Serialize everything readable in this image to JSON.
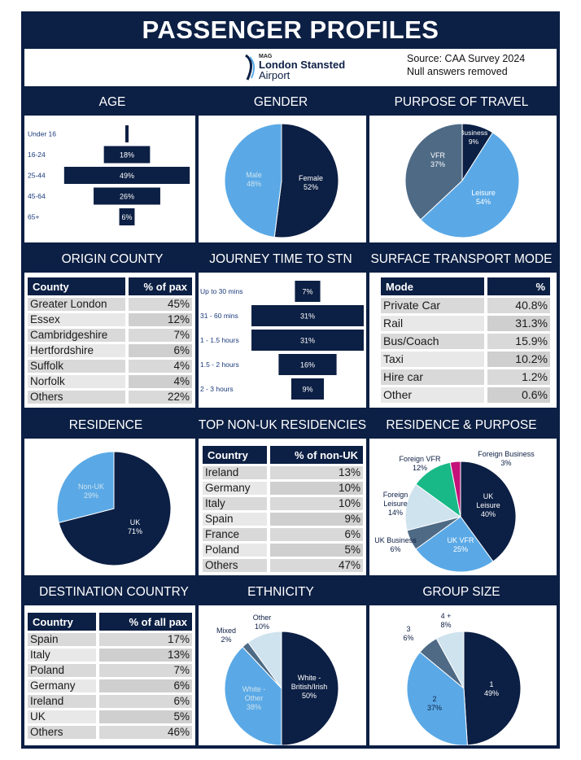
{
  "title": "PASSENGER PROFILES",
  "logo": {
    "mag": "MAG",
    "name_line1": "London Stansted",
    "name_line2": "Airport"
  },
  "source": {
    "line1": "Source: CAA Survey 2024",
    "line2": "Null answers removed"
  },
  "colors": {
    "navy": "#0c1f44",
    "light_blue": "#5aa9e6",
    "slate": "#4e6a85",
    "pale_blue": "#cfe3ee",
    "green": "#19b987",
    "magenta": "#c4127a"
  },
  "sections": {
    "age": "AGE",
    "gender": "GENDER",
    "purpose": "PURPOSE OF TRAVEL",
    "origin": "ORIGIN COUNTY",
    "journey": "JOURNEY TIME TO STN",
    "transport": "SURFACE TRANSPORT MODE",
    "residence": "RESIDENCE",
    "nonuk": "TOP NON-UK RESIDENCIES",
    "res_purpose": "RESIDENCE & PURPOSE",
    "destination": "DESTINATION COUNTRY",
    "ethnicity": "ETHNICITY",
    "group": "GROUP SIZE"
  },
  "tables": {
    "origin": {
      "headers": [
        "County",
        "% of pax"
      ],
      "rows": [
        [
          "Greater London",
          "45%"
        ],
        [
          "Essex",
          "12%"
        ],
        [
          "Cambridgeshire",
          "7%"
        ],
        [
          "Hertfordshire",
          "6%"
        ],
        [
          "Suffolk",
          "4%"
        ],
        [
          "Norfolk",
          "4%"
        ],
        [
          "Others",
          "22%"
        ]
      ]
    },
    "transport": {
      "headers": [
        "Mode",
        "%"
      ],
      "rows": [
        [
          "Private Car",
          "40.8%"
        ],
        [
          "Rail",
          "31.3%"
        ],
        [
          "Bus/Coach",
          "15.9%"
        ],
        [
          "Taxi",
          "10.2%"
        ],
        [
          "Hire car",
          "1.2%"
        ],
        [
          "Other",
          "0.6%"
        ]
      ]
    },
    "nonuk": {
      "headers": [
        "Country",
        "% of non-UK"
      ],
      "rows": [
        [
          "Ireland",
          "13%"
        ],
        [
          "Germany",
          "10%"
        ],
        [
          "Italy",
          "10%"
        ],
        [
          "Spain",
          "9%"
        ],
        [
          "France",
          "6%"
        ],
        [
          "Poland",
          "5%"
        ],
        [
          "Others",
          "47%"
        ]
      ]
    },
    "destination": {
      "headers": [
        "Country",
        "% of all pax"
      ],
      "rows": [
        [
          "Spain",
          "17%"
        ],
        [
          "Italy",
          "13%"
        ],
        [
          "Poland",
          "7%"
        ],
        [
          "Germany",
          "6%"
        ],
        [
          "Ireland",
          "6%"
        ],
        [
          "UK",
          "5%"
        ],
        [
          "Others",
          "46%"
        ]
      ]
    }
  },
  "chart_data": [
    {
      "id": "age",
      "type": "bar",
      "orientation": "horizontal-centered",
      "categories": [
        "Under 16",
        "16-24",
        "25-44",
        "45-64",
        "65+"
      ],
      "values": [
        1,
        18,
        49,
        26,
        6
      ],
      "labels": [
        "",
        "18%",
        "49%",
        "26%",
        "6%"
      ]
    },
    {
      "id": "gender",
      "type": "pie",
      "slices": [
        {
          "label": "Female",
          "value": 52,
          "text": "52%",
          "color": "#0c1f44"
        },
        {
          "label": "Male",
          "value": 48,
          "text": "48%",
          "color": "#5aa9e6"
        }
      ]
    },
    {
      "id": "purpose",
      "type": "pie",
      "slices": [
        {
          "label": "Business",
          "value": 9,
          "text": "9%",
          "color": "#0c1f44"
        },
        {
          "label": "Leisure",
          "value": 54,
          "text": "54%",
          "color": "#5aa9e6"
        },
        {
          "label": "VFR",
          "value": 37,
          "text": "37%",
          "color": "#4e6a85"
        }
      ]
    },
    {
      "id": "journey",
      "type": "bar",
      "orientation": "horizontal-centered",
      "categories": [
        "Up to 30 mins",
        "31 - 60 mins",
        "1 - 1.5 hours",
        "1.5 - 2 hours",
        "2 - 3 hours"
      ],
      "values": [
        7,
        31,
        31,
        16,
        9
      ],
      "labels": [
        "7%",
        "31%",
        "31%",
        "16%",
        "9%"
      ]
    },
    {
      "id": "residence",
      "type": "pie",
      "slices": [
        {
          "label": "UK",
          "value": 71,
          "text": "71%",
          "color": "#0c1f44"
        },
        {
          "label": "Non-UK",
          "value": 29,
          "text": "29%",
          "color": "#5aa9e6"
        }
      ]
    },
    {
      "id": "res_purpose",
      "type": "pie",
      "slices": [
        {
          "label": "UK Leisure",
          "value": 40,
          "text": "40%",
          "color": "#0c1f44"
        },
        {
          "label": "UK VFR",
          "value": 25,
          "text": "25%",
          "color": "#5aa9e6"
        },
        {
          "label": "UK Business",
          "value": 6,
          "text": "6%",
          "color": "#4e6a85"
        },
        {
          "label": "Foreign Leisure",
          "value": 14,
          "text": "14%",
          "color": "#cfe3ee"
        },
        {
          "label": "Foreign VFR",
          "value": 12,
          "text": "12%",
          "color": "#19b987"
        },
        {
          "label": "Foreign Business",
          "value": 3,
          "text": "3%",
          "color": "#c4127a"
        }
      ]
    },
    {
      "id": "ethnicity",
      "type": "pie",
      "slices": [
        {
          "label": "White - British/Irish",
          "value": 50,
          "text": "50%",
          "color": "#0c1f44"
        },
        {
          "label": "White - Other",
          "value": 38,
          "text": "38%",
          "color": "#5aa9e6"
        },
        {
          "label": "Mixed",
          "value": 2,
          "text": "2%",
          "color": "#4e6a85"
        },
        {
          "label": "Other",
          "value": 10,
          "text": "10%",
          "color": "#cfe3ee"
        }
      ]
    },
    {
      "id": "group",
      "type": "pie",
      "slices": [
        {
          "label": "1",
          "value": 49,
          "text": "49%",
          "color": "#0c1f44"
        },
        {
          "label": "2",
          "value": 37,
          "text": "37%",
          "color": "#5aa9e6"
        },
        {
          "label": "3",
          "value": 6,
          "text": "6%",
          "color": "#4e6a85"
        },
        {
          "label": "4 +",
          "value": 8,
          "text": "8%",
          "color": "#cfe3ee"
        }
      ]
    }
  ]
}
